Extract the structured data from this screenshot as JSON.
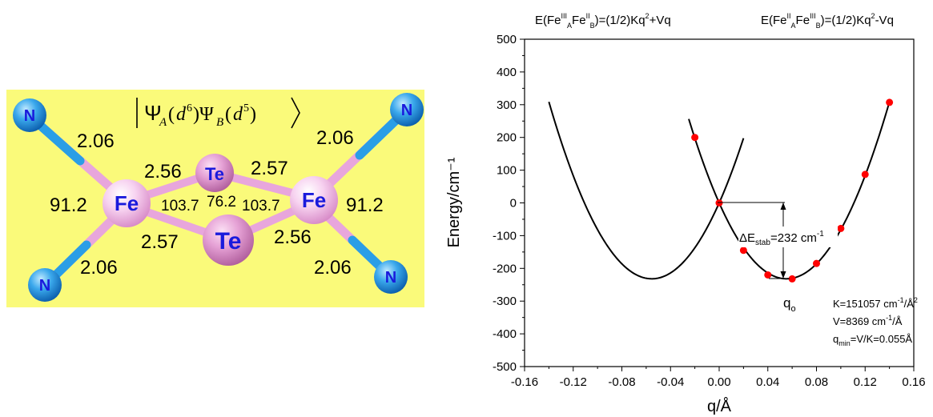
{
  "molecule": {
    "state_label": "|Ψ_A(d^6)Ψ_B(d^5)⟩",
    "atoms": {
      "fe": "Fe",
      "te": "Te",
      "n": "N"
    },
    "distances": {
      "fe_n_top_left": "2.06",
      "fe_n_top_right": "2.06",
      "fe_n_bottom_left": "2.06",
      "fe_n_bottom_right": "2.06",
      "fe_te_top_left": "2.56",
      "fe_te_top_right": "2.57",
      "fe_te_bottom_left": "2.57",
      "fe_te_bottom_right": "2.56"
    },
    "angles": {
      "n_fe_n_left": "91.2",
      "n_fe_n_right": "91.2",
      "te_fe_te_left": "103.7",
      "fe_te_fe": "76.2",
      "te_fe_te_right": "103.7"
    },
    "colors": {
      "panel_bg": "#fafa7a",
      "fe": "#f4c4ec",
      "te": "#e89cd2",
      "n": "#2a9ee6",
      "bond": "#e8a6dc"
    }
  },
  "chart_data": {
    "type": "line",
    "xlabel": "q/Å",
    "ylabel": "Energy/cm⁻¹",
    "xlim": [
      -0.16,
      0.16
    ],
    "ylim": [
      -500,
      500
    ],
    "xticks": [
      -0.16,
      -0.12,
      -0.08,
      -0.04,
      0.0,
      0.04,
      0.08,
      0.12,
      0.16
    ],
    "xtick_labels": [
      "-0.16",
      "-0.12",
      "-0.08",
      "-0.04",
      "0.00",
      "0.04",
      "0.08",
      "0.12",
      "0.16"
    ],
    "yticks": [
      -500,
      -400,
      -300,
      -200,
      -100,
      0,
      100,
      200,
      300,
      400,
      500
    ],
    "ytick_labels": [
      "-500",
      "-400",
      "-300",
      "-200",
      "-100",
      "0",
      "100",
      "200",
      "300",
      "400",
      "500"
    ],
    "series": [
      {
        "type": "curve",
        "formula": "(1/2)Kq^2 + Vq",
        "K": 151057,
        "V": 8369,
        "x_range": [
          -0.14,
          0.02
        ],
        "color": "#000000"
      },
      {
        "type": "curve",
        "formula": "(1/2)Kq^2 - Vq",
        "K": 151057,
        "V": 8369,
        "x_range": [
          -0.025,
          0.14
        ],
        "color": "#000000"
      },
      {
        "type": "scatter",
        "color": "#ff0000",
        "x": [
          -0.02,
          0.0,
          0.02,
          0.04,
          0.06,
          0.08,
          0.1,
          0.12,
          0.14
        ],
        "y": [
          200,
          0,
          -145,
          -220,
          -232,
          -185,
          -78,
          87,
          307
        ]
      }
    ],
    "curve_labels": {
      "left": {
        "main": "E(Fe",
        "sup1": "III",
        "sub1": "A",
        "mid": "Fe",
        "sup2": "II",
        "sub2": "B",
        "tail": ")=(1/2)Kq",
        "sup3": "2",
        "end": "+Vq"
      },
      "right": {
        "main": "E(Fe",
        "sup1": "II",
        "sub1": "A",
        "mid": "Fe",
        "sup2": "III",
        "sub2": "B",
        "tail": ")=(1/2)Kq",
        "sup3": "2",
        "end": "-Vq"
      }
    },
    "annotations": {
      "delta": {
        "pre": "ΔE",
        "sub": "stab",
        "post": "=232 cm",
        "sup": "-1"
      },
      "qo": {
        "main": "q",
        "sub": "o"
      },
      "k": {
        "pre": "K=151057 cm",
        "sup1": "-1",
        "mid": "/Å",
        "sup2": "2"
      },
      "v": {
        "pre": "V=8369 cm",
        "sup": "-1",
        "post": "/Å"
      },
      "qmin": {
        "pre": "q",
        "sub": "min",
        "post": "=V/K=0.055Å"
      }
    }
  }
}
